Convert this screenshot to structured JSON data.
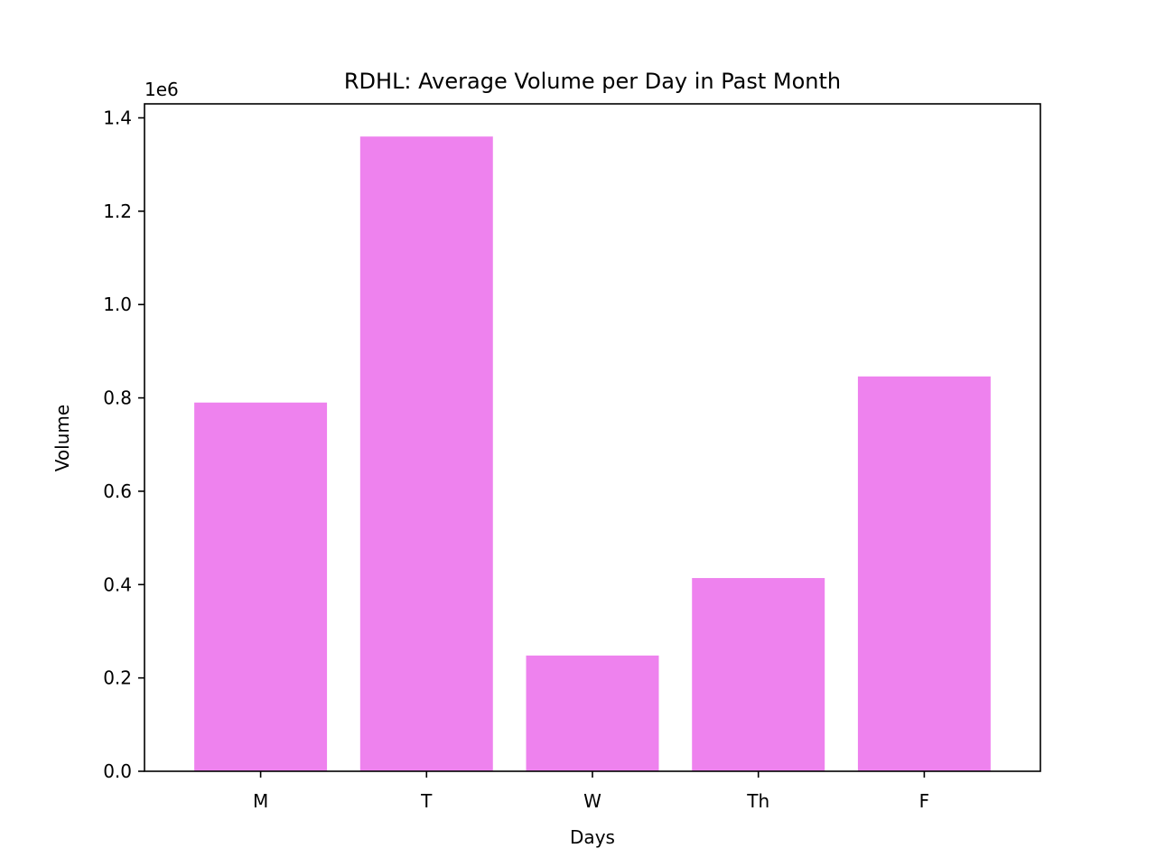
{
  "chart_data": {
    "type": "bar",
    "title": "RDHL: Average Volume per Day in Past Month",
    "xlabel": "Days",
    "ylabel": "Volume",
    "y_offset_label": "1e6",
    "categories": [
      "M",
      "T",
      "W",
      "Th",
      "F"
    ],
    "values": [
      790000,
      1360000,
      248000,
      414000,
      846000
    ],
    "ylim": [
      0,
      1430000
    ],
    "y_ticks": [
      0,
      200000,
      400000,
      600000,
      800000,
      1000000,
      1200000,
      1400000
    ],
    "y_tick_labels": [
      "0.0",
      "0.2",
      "0.4",
      "0.6",
      "0.8",
      "1.0",
      "1.2",
      "1.4"
    ],
    "bar_color": "#ee82ee",
    "grid": false,
    "legend": "none"
  }
}
